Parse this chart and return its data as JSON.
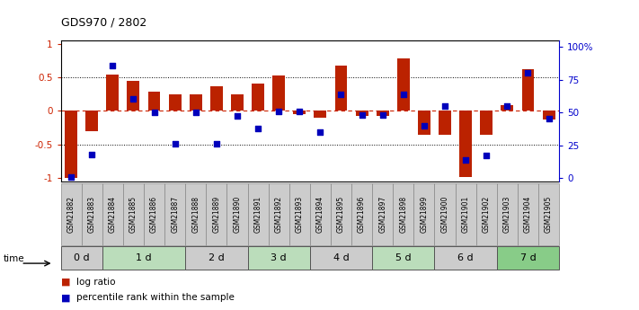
{
  "title": "GDS970 / 2802",
  "samples": [
    "GSM21882",
    "GSM21883",
    "GSM21884",
    "GSM21885",
    "GSM21886",
    "GSM21887",
    "GSM21888",
    "GSM21889",
    "GSM21890",
    "GSM21891",
    "GSM21892",
    "GSM21893",
    "GSM21894",
    "GSM21895",
    "GSM21896",
    "GSM21897",
    "GSM21898",
    "GSM21899",
    "GSM21900",
    "GSM21901",
    "GSM21902",
    "GSM21903",
    "GSM21904",
    "GSM21905"
  ],
  "log_ratio": [
    -1.0,
    -0.3,
    0.54,
    0.44,
    0.29,
    0.25,
    0.25,
    0.37,
    0.25,
    0.4,
    0.52,
    -0.05,
    -0.1,
    0.67,
    -0.08,
    -0.07,
    0.78,
    -0.35,
    -0.35,
    -0.98,
    -0.35,
    0.08,
    0.62,
    -0.13
  ],
  "percentile": [
    1,
    18,
    86,
    60,
    50,
    26,
    50,
    26,
    47,
    38,
    51,
    51,
    35,
    64,
    48,
    48,
    64,
    40,
    55,
    14,
    17,
    55,
    80,
    45
  ],
  "time_groups": [
    {
      "label": "0 d",
      "start": 0,
      "end": 2,
      "color": "#cccccc"
    },
    {
      "label": "1 d",
      "start": 2,
      "end": 6,
      "color": "#bbddbb"
    },
    {
      "label": "2 d",
      "start": 6,
      "end": 9,
      "color": "#cccccc"
    },
    {
      "label": "3 d",
      "start": 9,
      "end": 12,
      "color": "#bbddbb"
    },
    {
      "label": "4 d",
      "start": 12,
      "end": 15,
      "color": "#cccccc"
    },
    {
      "label": "5 d",
      "start": 15,
      "end": 18,
      "color": "#bbddbb"
    },
    {
      "label": "6 d",
      "start": 18,
      "end": 21,
      "color": "#cccccc"
    },
    {
      "label": "7 d",
      "start": 21,
      "end": 24,
      "color": "#88cc88"
    }
  ],
  "sample_cell_color": "#cccccc",
  "bar_color": "#bb2200",
  "dot_color": "#0000bb",
  "yticks_left": [
    -1,
    -0.5,
    0,
    0.5,
    1
  ],
  "yticks_right": [
    0,
    25,
    50,
    75,
    100
  ],
  "background_color": "#ffffff"
}
